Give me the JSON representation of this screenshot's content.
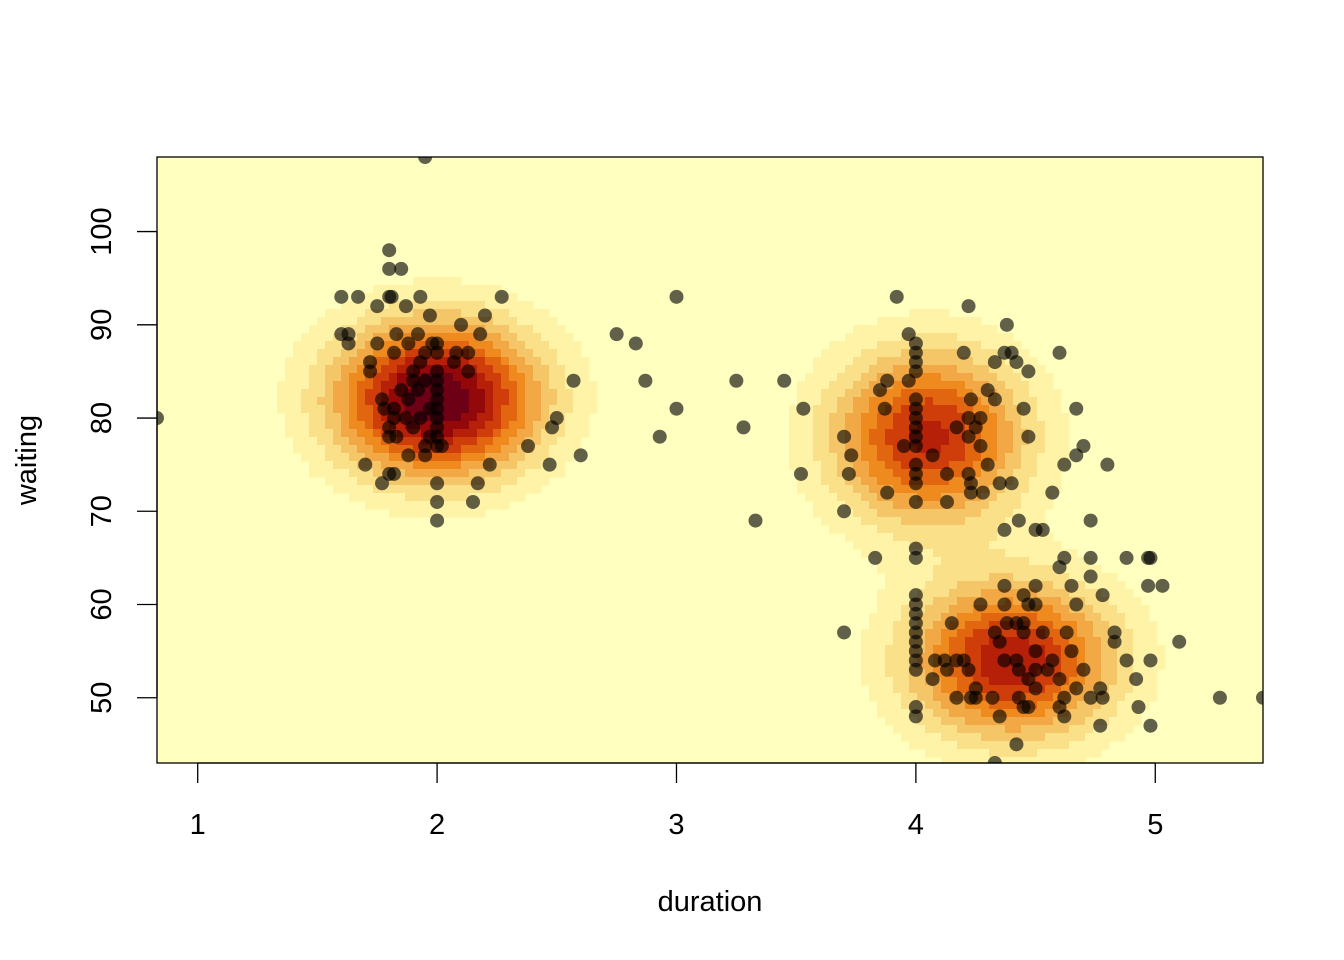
{
  "chart_data": {
    "type": "scatter",
    "overlay": "2d density filled contour",
    "title": "",
    "xlabel": "duration",
    "ylabel": "waiting",
    "xlim": [
      0.83,
      5.45
    ],
    "ylim": [
      43,
      108
    ],
    "x_ticks": [
      "1",
      "2",
      "3",
      "4",
      "5"
    ],
    "y_ticks": [
      "50",
      "60",
      "70",
      "80",
      "90",
      "100"
    ],
    "grid": false,
    "legend": "none",
    "colors": {
      "point": "#000000",
      "point_opacity": 0.62,
      "density_levels": [
        "#FFFFBF",
        "#FFF3A8",
        "#FBE08A",
        "#F5C667",
        "#F2A845",
        "#EF8A1F",
        "#E2650F",
        "#CF3E0A",
        "#B61F08",
        "#95080A",
        "#6E0016"
      ]
    },
    "density_peaks": [
      {
        "x": 2.0,
        "y": 82,
        "level": 1.0
      },
      {
        "x": 4.05,
        "y": 78,
        "level": 0.75
      },
      {
        "x": 4.4,
        "y": 54,
        "level": 0.8
      }
    ],
    "points": [
      [
        0.83,
        80
      ],
      [
        1.95,
        108
      ],
      [
        1.8,
        98
      ],
      [
        1.8,
        96
      ],
      [
        1.85,
        96
      ],
      [
        1.6,
        93
      ],
      [
        1.67,
        93
      ],
      [
        1.8,
        93
      ],
      [
        1.81,
        93
      ],
      [
        1.93,
        93
      ],
      [
        2.27,
        93
      ],
      [
        3.0,
        93
      ],
      [
        3.92,
        93
      ],
      [
        1.75,
        92
      ],
      [
        1.87,
        92
      ],
      [
        4.22,
        92
      ],
      [
        1.97,
        91
      ],
      [
        2.2,
        91
      ],
      [
        1.6,
        89
      ],
      [
        1.63,
        89
      ],
      [
        1.83,
        89
      ],
      [
        1.92,
        89
      ],
      [
        2.18,
        89
      ],
      [
        2.75,
        89
      ],
      [
        3.97,
        89
      ],
      [
        2.1,
        90
      ],
      [
        4.38,
        90
      ],
      [
        1.63,
        88
      ],
      [
        1.75,
        88
      ],
      [
        1.88,
        88
      ],
      [
        1.98,
        88
      ],
      [
        2.0,
        88
      ],
      [
        2.83,
        88
      ],
      [
        4.0,
        88
      ],
      [
        1.72,
        86
      ],
      [
        1.93,
        86
      ],
      [
        2.07,
        86
      ],
      [
        4.0,
        86
      ],
      [
        4.33,
        86
      ],
      [
        4.42,
        86
      ],
      [
        1.72,
        85
      ],
      [
        1.9,
        85
      ],
      [
        2.0,
        85
      ],
      [
        2.13,
        85
      ],
      [
        4.0,
        85
      ],
      [
        4.47,
        85
      ],
      [
        1.82,
        87
      ],
      [
        1.95,
        87
      ],
      [
        2.0,
        87
      ],
      [
        2.08,
        87
      ],
      [
        2.13,
        87
      ],
      [
        4.0,
        87
      ],
      [
        4.2,
        87
      ],
      [
        4.37,
        87
      ],
      [
        4.4,
        87
      ],
      [
        4.6,
        87
      ],
      [
        2.57,
        84
      ],
      [
        2.87,
        84
      ],
      [
        3.25,
        84
      ],
      [
        3.45,
        84
      ],
      [
        3.88,
        84
      ],
      [
        3.97,
        84
      ],
      [
        1.9,
        84
      ],
      [
        1.95,
        84
      ],
      [
        2.0,
        84
      ],
      [
        1.85,
        83
      ],
      [
        1.92,
        83
      ],
      [
        2.0,
        83
      ],
      [
        3.85,
        83
      ],
      [
        4.3,
        83
      ],
      [
        1.77,
        82
      ],
      [
        1.88,
        82
      ],
      [
        2.0,
        82
      ],
      [
        4.0,
        82
      ],
      [
        4.23,
        82
      ],
      [
        4.33,
        82
      ],
      [
        1.78,
        81
      ],
      [
        1.82,
        81
      ],
      [
        1.97,
        81
      ],
      [
        2.0,
        81
      ],
      [
        3.53,
        81
      ],
      [
        3.87,
        81
      ],
      [
        4.0,
        81
      ],
      [
        4.45,
        81
      ],
      [
        4.67,
        81
      ],
      [
        1.82,
        80
      ],
      [
        1.87,
        80
      ],
      [
        1.93,
        80
      ],
      [
        2.0,
        80
      ],
      [
        2.5,
        80
      ],
      [
        3.0,
        81
      ],
      [
        4.0,
        80
      ],
      [
        4.22,
        80
      ],
      [
        4.27,
        80
      ],
      [
        1.8,
        79
      ],
      [
        1.9,
        79
      ],
      [
        2.0,
        79
      ],
      [
        2.48,
        79
      ],
      [
        3.28,
        79
      ],
      [
        4.0,
        79
      ],
      [
        4.17,
        79
      ],
      [
        4.25,
        79
      ],
      [
        1.8,
        78
      ],
      [
        1.83,
        78
      ],
      [
        1.97,
        78
      ],
      [
        2.0,
        78
      ],
      [
        2.93,
        78
      ],
      [
        3.7,
        78
      ],
      [
        4.0,
        78
      ],
      [
        4.22,
        78
      ],
      [
        4.47,
        78
      ],
      [
        1.95,
        77
      ],
      [
        2.0,
        77
      ],
      [
        2.02,
        77
      ],
      [
        2.38,
        77
      ],
      [
        3.95,
        77
      ],
      [
        4.0,
        77
      ],
      [
        4.27,
        77
      ],
      [
        4.7,
        77
      ],
      [
        1.88,
        76
      ],
      [
        1.95,
        76
      ],
      [
        2.6,
        76
      ],
      [
        3.73,
        76
      ],
      [
        4.07,
        76
      ],
      [
        4.67,
        76
      ],
      [
        1.7,
        75
      ],
      [
        2.22,
        75
      ],
      [
        2.47,
        75
      ],
      [
        4.0,
        75
      ],
      [
        4.3,
        75
      ],
      [
        4.62,
        75
      ],
      [
        4.8,
        75
      ],
      [
        1.8,
        74
      ],
      [
        1.82,
        74
      ],
      [
        3.52,
        74
      ],
      [
        3.72,
        74
      ],
      [
        4.0,
        74
      ],
      [
        4.13,
        74
      ],
      [
        4.22,
        74
      ],
      [
        1.77,
        73
      ],
      [
        2.0,
        73
      ],
      [
        2.17,
        73
      ],
      [
        4.0,
        73
      ],
      [
        4.23,
        73
      ],
      [
        4.35,
        73
      ],
      [
        4.4,
        73
      ],
      [
        3.88,
        72
      ],
      [
        4.23,
        72
      ],
      [
        4.28,
        72
      ],
      [
        4.57,
        72
      ],
      [
        2.0,
        71
      ],
      [
        2.15,
        71
      ],
      [
        4.0,
        71
      ],
      [
        4.13,
        71
      ],
      [
        3.7,
        70
      ],
      [
        2.0,
        69
      ],
      [
        3.33,
        69
      ],
      [
        4.43,
        69
      ],
      [
        4.73,
        69
      ],
      [
        4.37,
        68
      ],
      [
        4.5,
        68
      ],
      [
        4.53,
        68
      ],
      [
        3.83,
        65
      ],
      [
        4.0,
        66
      ],
      [
        4.0,
        65
      ],
      [
        4.62,
        65
      ],
      [
        4.73,
        65
      ],
      [
        4.88,
        65
      ],
      [
        4.97,
        65
      ],
      [
        4.98,
        65
      ],
      [
        4.6,
        64
      ],
      [
        4.73,
        63
      ],
      [
        4.37,
        62
      ],
      [
        4.5,
        62
      ],
      [
        4.65,
        62
      ],
      [
        4.97,
        62
      ],
      [
        5.03,
        62
      ],
      [
        4.0,
        61
      ],
      [
        4.45,
        61
      ],
      [
        4.78,
        61
      ],
      [
        4.0,
        60
      ],
      [
        4.27,
        60
      ],
      [
        4.37,
        60
      ],
      [
        4.47,
        60
      ],
      [
        4.5,
        60
      ],
      [
        4.67,
        60
      ],
      [
        4.0,
        59
      ],
      [
        4.0,
        58
      ],
      [
        4.15,
        58
      ],
      [
        4.38,
        58
      ],
      [
        4.42,
        58
      ],
      [
        4.45,
        58
      ],
      [
        4.0,
        57
      ],
      [
        3.7,
        57
      ],
      [
        4.33,
        57
      ],
      [
        4.45,
        57
      ],
      [
        4.53,
        57
      ],
      [
        4.63,
        57
      ],
      [
        4.83,
        57
      ],
      [
        4.83,
        56
      ],
      [
        5.1,
        56
      ],
      [
        4.0,
        56
      ],
      [
        4.35,
        56
      ],
      [
        4.0,
        55
      ],
      [
        4.5,
        55
      ],
      [
        4.65,
        55
      ],
      [
        4.0,
        54
      ],
      [
        4.08,
        54
      ],
      [
        4.12,
        54
      ],
      [
        4.17,
        54
      ],
      [
        4.2,
        54
      ],
      [
        4.37,
        54
      ],
      [
        4.42,
        54
      ],
      [
        4.57,
        54
      ],
      [
        4.88,
        54
      ],
      [
        4.98,
        54
      ],
      [
        4.0,
        53
      ],
      [
        4.13,
        53
      ],
      [
        4.22,
        53
      ],
      [
        4.43,
        53
      ],
      [
        4.5,
        53
      ],
      [
        4.55,
        53
      ],
      [
        4.7,
        53
      ],
      [
        4.07,
        52
      ],
      [
        4.47,
        52
      ],
      [
        4.6,
        52
      ],
      [
        4.92,
        52
      ],
      [
        4.25,
        51
      ],
      [
        4.5,
        51
      ],
      [
        4.67,
        51
      ],
      [
        4.77,
        51
      ],
      [
        4.17,
        50
      ],
      [
        4.23,
        50
      ],
      [
        4.25,
        50
      ],
      [
        4.32,
        50
      ],
      [
        4.43,
        50
      ],
      [
        4.62,
        50
      ],
      [
        4.73,
        50
      ],
      [
        4.78,
        50
      ],
      [
        5.27,
        50
      ],
      [
        5.45,
        50
      ],
      [
        4.0,
        49
      ],
      [
        4.45,
        49
      ],
      [
        4.47,
        49
      ],
      [
        4.6,
        49
      ],
      [
        4.93,
        49
      ],
      [
        4.0,
        48
      ],
      [
        4.35,
        48
      ],
      [
        4.62,
        48
      ],
      [
        4.77,
        47
      ],
      [
        4.98,
        47
      ],
      [
        4.42,
        45
      ],
      [
        4.33,
        43
      ]
    ]
  }
}
